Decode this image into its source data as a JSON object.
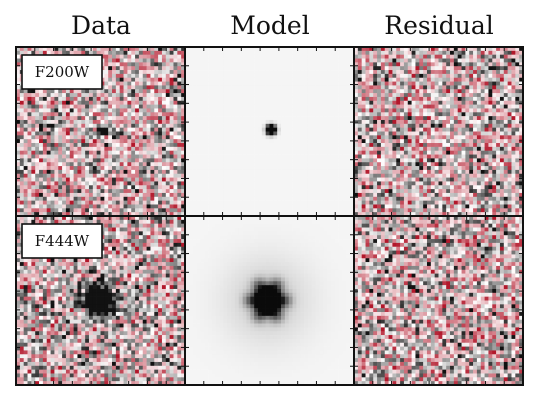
{
  "figure": {
    "column_titles": [
      "Data",
      "Model",
      "Residual"
    ],
    "rows": [
      {
        "band": "F200W",
        "source": "compact"
      },
      {
        "band": "F444W",
        "source": "extended"
      }
    ],
    "colormap": {
      "positive": "#b2182b",
      "mid": "#ffffff",
      "negative": "#111111"
    }
  }
}
